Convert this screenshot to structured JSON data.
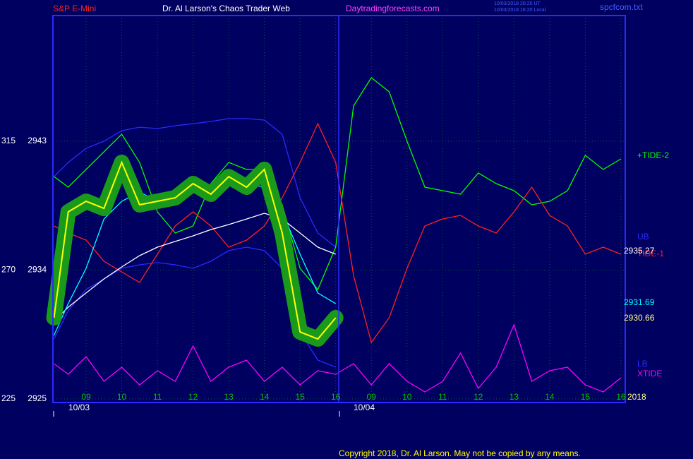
{
  "chart_data": {
    "type": "line",
    "title": "Dr. Al Larson's Chaos Trader Web",
    "instrument": "S&P E-Mini",
    "website": "Daytradingforecasts.com",
    "timestamps": [
      "10/03/2018 20:20 UT",
      "10/03/2018 16:20 Local"
    ],
    "file": "spcfcom.txt",
    "copyright": "Copyright 2018, Dr. Al Larson. May not be copied by any means.",
    "dates": [
      "10/03",
      "10/04"
    ],
    "year": "2018",
    "grid": true,
    "x": [
      -0.9,
      -0.5,
      0,
      0.5,
      1,
      1.5,
      2,
      2.5,
      3,
      3.5,
      4,
      4.5,
      5,
      5.5,
      6,
      6.5,
      7,
      7.5,
      8,
      8.5,
      9,
      9.5,
      10,
      10.5,
      11,
      11.5,
      12,
      12.5,
      13,
      13.5,
      14,
      14.5,
      15
    ],
    "xlim": [
      -0.93,
      15.12
    ],
    "xticks": [
      {
        "value": 0,
        "label": "09"
      },
      {
        "value": 1,
        "label": "10"
      },
      {
        "value": 2,
        "label": "11"
      },
      {
        "value": 3,
        "label": "12"
      },
      {
        "value": 4,
        "label": "13"
      },
      {
        "value": 5,
        "label": "14"
      },
      {
        "value": 6,
        "label": "15"
      },
      {
        "value": 7,
        "label": "16"
      },
      {
        "value": 8,
        "label": "09"
      },
      {
        "value": 9,
        "label": "10"
      },
      {
        "value": 10,
        "label": "11"
      },
      {
        "value": 11,
        "label": "12"
      },
      {
        "value": 12,
        "label": "13"
      },
      {
        "value": 13,
        "label": "14"
      },
      {
        "value": 14,
        "label": "15"
      },
      {
        "value": 15,
        "label": "16"
      }
    ],
    "ylim": [
      2924.75,
      2951.78
    ],
    "yticks": [
      2925,
      2934,
      2943
    ],
    "y2lim": [
      223.77,
      358.87
    ],
    "y2ticks": [
      225,
      270,
      315
    ],
    "readouts": [
      {
        "label": "2935.27",
        "color": "#ffffff"
      },
      {
        "label": "2931.69",
        "color": "#00ffff"
      },
      {
        "label": "2930.66",
        "color": "#ffff80"
      }
    ],
    "series": [
      {
        "name": "UB",
        "color": "#2a2aff",
        "values": [
          2940.53,
          2941.52,
          2942.5,
          2943.0,
          2943.74,
          2943.98,
          2943.89,
          2944.08,
          2944.23,
          2944.38,
          2944.58,
          2944.58,
          2944.48,
          2943.49,
          2939.05,
          2936.59,
          2935.6,
          null,
          null,
          null,
          null,
          null,
          null,
          null,
          null,
          null,
          null,
          null,
          null,
          null,
          null,
          null,
          null
        ]
      },
      {
        "name": "LB",
        "color": "#2a2aff",
        "values": [
          2929.19,
          2931.16,
          2932.64,
          2933.38,
          2934.12,
          2934.37,
          2934.52,
          2934.37,
          2934.12,
          2934.62,
          2935.36,
          2935.6,
          2935.36,
          2934.12,
          2929.68,
          2927.71,
          2927.22,
          null,
          null,
          null,
          null,
          null,
          null,
          null,
          null,
          null,
          null,
          null,
          null,
          null,
          null,
          null,
          null
        ]
      },
      {
        "name": "+TIDE-2",
        "color": "#00ff00",
        "axis": "y2",
        "values": [
          302.66,
          298.97,
          305.13,
          311.29,
          317.46,
          307.59,
          290.34,
          282.94,
          285.41,
          300.2,
          307.59,
          305.13,
          305.13,
          292.8,
          270.61,
          263.22,
          278.01,
          327.32,
          337.18,
          332.25,
          314.99,
          298.97,
          297.73,
          296.5,
          303.9,
          300.2,
          297.73,
          292.8,
          294.03,
          297.73,
          310.06,
          305.13,
          308.83
        ]
      },
      {
        "name": "TIDE-1",
        "color": "#ff2020",
        "axis": "y2",
        "values": [
          285.41,
          282.94,
          280.47,
          273.08,
          269.38,
          265.68,
          275.54,
          285.41,
          290.34,
          285.41,
          278.01,
          280.47,
          285.41,
          295.27,
          307.59,
          321.15,
          307.59,
          268.15,
          244.72,
          253.35,
          270.61,
          285.41,
          287.87,
          289.1,
          285.41,
          282.94,
          290.34,
          298.97,
          289.1,
          285.41,
          275.54,
          278.01,
          275.54
        ]
      },
      {
        "name": "XTIDE",
        "color": "#ff00ff",
        "axis": "y2",
        "values": [
          237.33,
          233.63,
          239.79,
          231.16,
          236.09,
          229.93,
          234.86,
          231.16,
          243.49,
          231.16,
          236.09,
          238.56,
          231.16,
          236.09,
          229.93,
          234.86,
          233.63,
          237.33,
          229.93,
          237.33,
          231.16,
          227.47,
          231.16,
          241.03,
          228.7,
          236.09,
          250.89,
          231.16,
          234.86,
          236.09,
          229.93,
          227.47,
          232.4
        ]
      },
      {
        "color": "#ffffff",
        "values": [
          2930.42,
          2931.41,
          2932.4,
          2933.38,
          2934.22,
          2935.01,
          2935.6,
          2936.0,
          2936.39,
          2936.83,
          2937.18,
          2937.57,
          2937.97,
          2937.57,
          2936.59,
          2935.6,
          2935.11,
          null,
          null,
          null,
          null,
          null,
          null,
          null,
          null,
          null,
          null,
          null,
          null,
          null,
          null,
          null,
          null
        ]
      },
      {
        "color": "#00ffff",
        "values": [
          2929.44,
          2931.66,
          2934.12,
          2937.57,
          2938.81,
          2939.45,
          2938.81,
          2939.3,
          2939.64,
          2939.79,
          2939.94,
          2940.04,
          2939.79,
          2938.07,
          2935.11,
          2932.4,
          2931.66,
          null,
          null,
          null,
          null,
          null,
          null,
          null,
          null,
          null,
          null,
          null,
          null,
          null,
          null,
          null,
          null
        ]
      },
      {
        "color": "#ffff00",
        "glow": "#1a9a1a",
        "values": [
          2930.67,
          2938.07,
          2938.81,
          2938.31,
          2941.52,
          2938.56,
          2938.81,
          2939.05,
          2940.04,
          2939.3,
          2940.53,
          2939.79,
          2941.03,
          2936.59,
          2929.68,
          2929.19,
          2930.67,
          null,
          null,
          null,
          null,
          null,
          null,
          null,
          null,
          null,
          null,
          null,
          null,
          null,
          null,
          null,
          null
        ]
      }
    ]
  }
}
